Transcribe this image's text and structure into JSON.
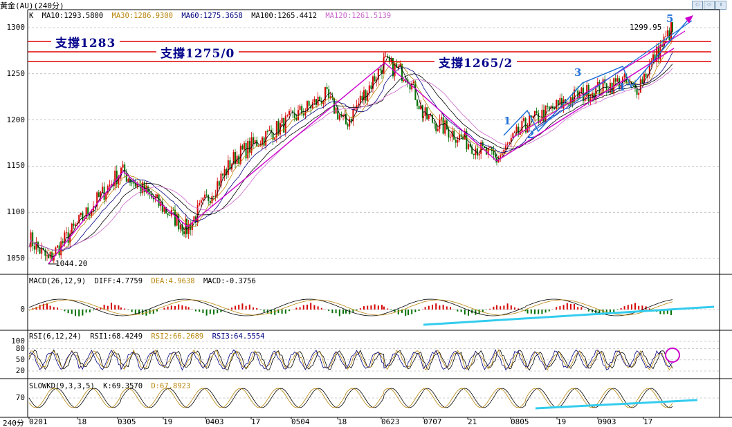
{
  "window": {
    "title": "黃金(AU)(240分)",
    "buttons": [
      "⇦",
      "⇨",
      "⇪"
    ]
  },
  "price_panel": {
    "header": {
      "k": "K",
      "ma10": "MA10:1293.5800",
      "ma30": "MA30:1286.9300",
      "ma60": "MA60:1275.3658",
      "ma100": "MA100:1265.4412",
      "ma120": "MA120:1261.5139"
    },
    "support_labels": [
      "支撐1283",
      "支撐1275/0",
      "支撐1265/2"
    ],
    "low_label": "1044.20",
    "high_label": "1299.95",
    "wave_labels": [
      "1",
      "2",
      "3",
      "4",
      "5"
    ]
  },
  "macd_panel": {
    "header": {
      "name": "MACD(26,12,9)",
      "diff": "DIFF:4.7759",
      "dea": "DEA:4.9638",
      "macd": "MACD:-0.3756"
    }
  },
  "rsi_panel": {
    "header": {
      "name": "RSI(6,12,24)",
      "rsi1": "RSI1:68.4249",
      "rsi2": "RSI2:66.2689",
      "rsi3": "RSI3:64.5554"
    }
  },
  "kd_panel": {
    "header": {
      "name": "SLOWKD(9,3,3,5)",
      "k": "K:69.3570",
      "d": "D:67.8923"
    }
  },
  "footer": {
    "period": "240分"
  },
  "colors": {
    "ma10": "#000000",
    "ma30": "#b8860b",
    "ma60": "#000080",
    "ma100": "#000000",
    "ma120": "#cc66cc",
    "zigzag": "#cc00cc",
    "support_line": "#e00000",
    "trend_blue": "#1e6fd8",
    "cyan_line": "#33ccee",
    "up_candle": "#d40000",
    "down_candle": "#007000"
  },
  "chart_data": [
    {
      "type": "candlestick",
      "title": "黃金(AU)(240分)",
      "y_ticks": [
        1050,
        1100,
        1150,
        1200,
        1250,
        1300
      ],
      "ylim": [
        1035,
        1310
      ],
      "x_ticks": [
        "0201",
        "18",
        "0305",
        "19",
        "0403",
        "17",
        "0504",
        "18",
        "0623",
        "0707",
        "21",
        "0805",
        "19",
        "0903",
        "17"
      ],
      "support_levels": [
        1283,
        1275,
        1265
      ],
      "swing_points": [
        {
          "x": "0201",
          "y": 1044.2
        },
        {
          "x": "0305",
          "y": 1145
        },
        {
          "x": "19",
          "y": 1082
        },
        {
          "x": "0623",
          "y": 1263
        },
        {
          "x": "0707",
          "y": 1155
        },
        {
          "x": "17",
          "y": 1299.95
        }
      ],
      "ma_values": {
        "MA10": 1293.58,
        "MA30": 1286.93,
        "MA60": 1275.3658,
        "MA100": 1265.4412,
        "MA120": 1261.5139
      }
    },
    {
      "type": "bar",
      "title": "MACD(26,12,9)",
      "y_ticks": [
        0
      ],
      "values": {
        "DIFF": 4.7759,
        "DEA": 4.9638,
        "MACD": -0.3756
      }
    },
    {
      "type": "line",
      "title": "RSI(6,12,24)",
      "y_ticks": [
        20,
        50,
        80,
        100
      ],
      "values": {
        "RSI1": 68.4249,
        "RSI2": 66.2689,
        "RSI3": 64.5554
      }
    },
    {
      "type": "line",
      "title": "SLOWKD(9,3,3,5)",
      "y_ticks": [
        70
      ],
      "values": {
        "K": 69.357,
        "D": 67.8923
      }
    }
  ]
}
